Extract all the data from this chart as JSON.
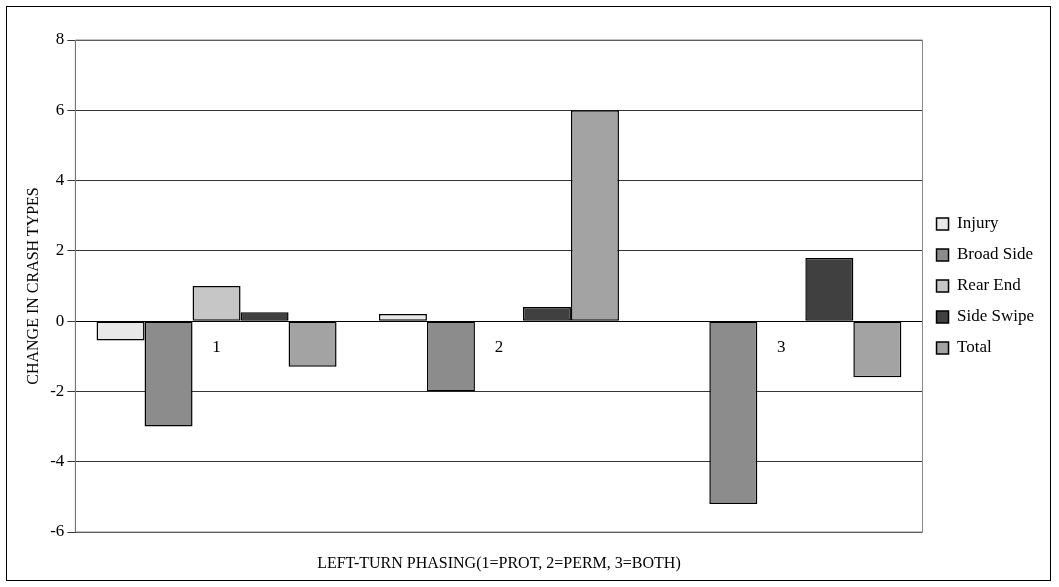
{
  "chart_data": {
    "type": "bar",
    "xlabel": "LEFT-TURN PHASING(1=PROT, 2=PERM, 3=BOTH)",
    "ylabel": "CHANGE IN CRASH TYPES",
    "categories": [
      "1",
      "2",
      "3"
    ],
    "series": [
      {
        "name": "Injury",
        "color": "#e8e8e8",
        "values": [
          -0.55,
          0.2,
          0
        ]
      },
      {
        "name": "Broad Side",
        "color": "#8c8c8c",
        "values": [
          -3.0,
          -2.0,
          -5.2
        ]
      },
      {
        "name": "Rear End",
        "color": "#c6c6c6",
        "values": [
          1.0,
          0,
          0
        ]
      },
      {
        "name": "Side Swipe",
        "color": "#404040",
        "values": [
          0.25,
          0.4,
          1.8
        ]
      },
      {
        "name": "Total",
        "color": "#a3a3a3",
        "values": [
          -1.3,
          6.0,
          -1.6
        ]
      }
    ],
    "ylim": [
      -6,
      8
    ],
    "yticks": [
      -6,
      -4,
      -2,
      0,
      2,
      4,
      6,
      8
    ],
    "grid": "y",
    "legend": "right"
  }
}
